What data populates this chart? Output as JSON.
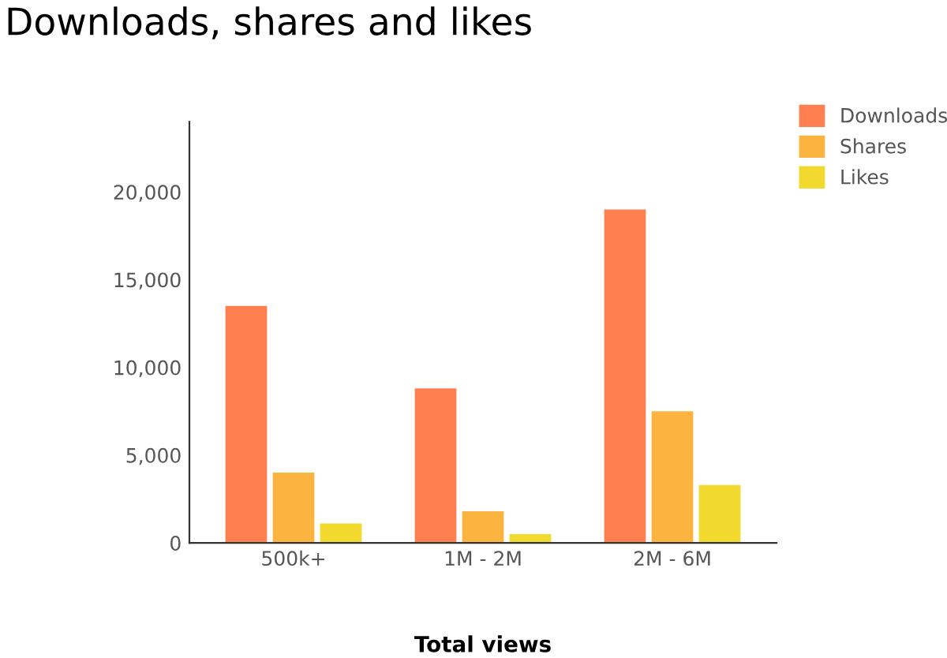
{
  "chart_data": {
    "type": "bar",
    "title": "Downloads, shares and likes",
    "xlabel": "Total views",
    "categories": [
      "500k+",
      "1M - 2M",
      "2M - 6M"
    ],
    "series": [
      {
        "name": "Downloads",
        "color": "#fe7f4f",
        "values": [
          13500,
          8800,
          19000
        ]
      },
      {
        "name": "Shares",
        "color": "#fbb440",
        "values": [
          4000,
          1800,
          7500
        ]
      },
      {
        "name": "Likes",
        "color": "#f2d92e",
        "values": [
          1100,
          500,
          3300
        ]
      }
    ],
    "ylim": [
      0,
      24000
    ],
    "yticks": [
      {
        "value": 0,
        "label": "0"
      },
      {
        "value": 5000,
        "label": "5,000"
      },
      {
        "value": 10000,
        "label": "10,000"
      },
      {
        "value": 15000,
        "label": "15,000"
      },
      {
        "value": 20000,
        "label": "20,000"
      }
    ],
    "grid": false,
    "legend": "top right"
  }
}
